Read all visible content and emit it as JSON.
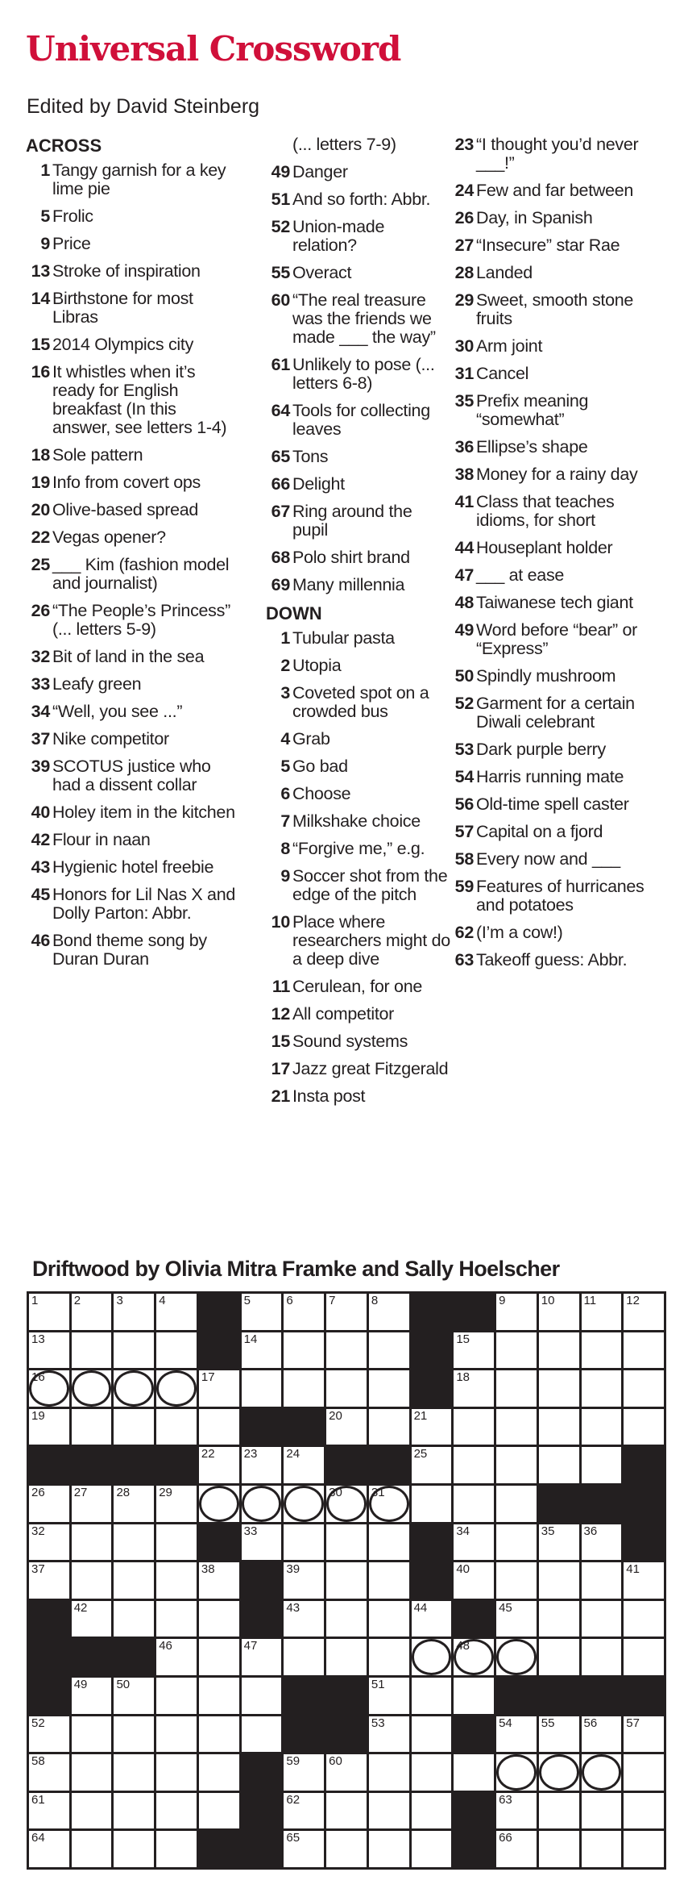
{
  "header": {
    "title": "Universal Crossword",
    "editor": "Edited by David Steinberg"
  },
  "colors": {
    "title": "#d0103a",
    "ink": "#231f20"
  },
  "across_label": "ACROSS",
  "down_label": "DOWN",
  "columns": [
    [
      {
        "type": "hdr",
        "key": "across_label"
      },
      {
        "n": "1",
        "t": "Tangy garnish for a key lime pie"
      },
      {
        "n": "5",
        "t": "Frolic"
      },
      {
        "n": "9",
        "t": "Price"
      },
      {
        "n": "13",
        "t": "Stroke of inspiration"
      },
      {
        "n": "14",
        "t": "Birthstone for most Libras"
      },
      {
        "n": "15",
        "t": "2014 Olympics city"
      },
      {
        "n": "16",
        "t": "It whistles when it’s ready for English breakfast (In this answer, see letters 1-4)"
      },
      {
        "n": "18",
        "t": "Sole pattern"
      },
      {
        "n": "19",
        "t": "Info from covert ops"
      },
      {
        "n": "20",
        "t": "Olive-based spread"
      },
      {
        "n": "22",
        "t": "Vegas opener?"
      },
      {
        "n": "25",
        "t": "___ Kim (fashion model and journalist)"
      },
      {
        "n": "26",
        "t": "“The People’s Princess” (... letters 5-9)"
      },
      {
        "n": "32",
        "t": "Bit of land in the sea"
      },
      {
        "n": "33",
        "t": "Leafy green"
      },
      {
        "n": "34",
        "t": "“Well, you see ...”"
      },
      {
        "n": "37",
        "t": "Nike competitor"
      },
      {
        "n": "39",
        "t": "SCOTUS justice who had a dissent collar"
      },
      {
        "n": "40",
        "t": "Holey item in the kitchen"
      },
      {
        "n": "42",
        "t": "Flour in naan"
      },
      {
        "n": "43",
        "t": "Hygienic hotel freebie"
      },
      {
        "n": "45",
        "t": "Honors for Lil Nas X and Dolly Parton: Abbr."
      },
      {
        "n": "46",
        "t": "Bond theme song by Duran Duran"
      }
    ],
    [
      {
        "type": "cont",
        "t": "(... letters 7-9)"
      },
      {
        "n": "49",
        "t": "Danger"
      },
      {
        "n": "51",
        "t": "And so forth: Abbr."
      },
      {
        "n": "52",
        "t": "Union-made relation?"
      },
      {
        "n": "55",
        "t": "Overact"
      },
      {
        "n": "60",
        "t": "“The real treasure was the friends we made ___ the way”"
      },
      {
        "n": "61",
        "t": "Unlikely to pose (... letters 6-8)"
      },
      {
        "n": "64",
        "t": "Tools for collecting leaves"
      },
      {
        "n": "65",
        "t": "Tons"
      },
      {
        "n": "66",
        "t": "Delight"
      },
      {
        "n": "67",
        "t": "Ring around the pupil"
      },
      {
        "n": "68",
        "t": "Polo shirt brand"
      },
      {
        "n": "69",
        "t": "Many millennia"
      },
      {
        "type": "hdr",
        "key": "down_label"
      },
      {
        "n": "1",
        "t": "Tubular pasta"
      },
      {
        "n": "2",
        "t": "Utopia"
      },
      {
        "n": "3",
        "t": "Coveted spot on a crowded bus"
      },
      {
        "n": "4",
        "t": "Grab"
      },
      {
        "n": "5",
        "t": "Go bad"
      },
      {
        "n": "6",
        "t": "Choose"
      },
      {
        "n": "7",
        "t": "Milkshake choice"
      },
      {
        "n": "8",
        "t": "“Forgive me,” e.g."
      },
      {
        "n": "9",
        "t": "Soccer shot from the edge of the pitch"
      },
      {
        "n": "10",
        "t": "Place where researchers might do a deep dive"
      },
      {
        "n": "11",
        "t": "Cerulean, for one"
      },
      {
        "n": "12",
        "t": "All competitor"
      },
      {
        "n": "15",
        "t": "Sound systems"
      },
      {
        "n": "17",
        "t": "Jazz great Fitzgerald"
      },
      {
        "n": "21",
        "t": "Insta post"
      }
    ],
    [
      {
        "n": "23",
        "t": "“I thought you’d never ___!”"
      },
      {
        "n": "24",
        "t": "Few and far between"
      },
      {
        "n": "26",
        "t": "Day, in Spanish"
      },
      {
        "n": "27",
        "t": "“Insecure” star Rae"
      },
      {
        "n": "28",
        "t": "Landed"
      },
      {
        "n": "29",
        "t": "Sweet, smooth stone fruits"
      },
      {
        "n": "30",
        "t": "Arm joint"
      },
      {
        "n": "31",
        "t": "Cancel"
      },
      {
        "n": "35",
        "t": "Prefix meaning “somewhat”"
      },
      {
        "n": "36",
        "t": "Ellipse’s shape"
      },
      {
        "n": "38",
        "t": "Money for a rainy day"
      },
      {
        "n": "41",
        "t": "Class that teaches idioms, for short"
      },
      {
        "n": "44",
        "t": "Houseplant holder"
      },
      {
        "n": "47",
        "t": "___ at ease"
      },
      {
        "n": "48",
        "t": "Taiwanese tech giant"
      },
      {
        "n": "49",
        "t": "Word before “bear” or “Express”"
      },
      {
        "n": "50",
        "t": "Spindly mushroom"
      },
      {
        "n": "52",
        "t": "Garment for a certain Diwali celebrant"
      },
      {
        "n": "53",
        "t": "Dark purple berry"
      },
      {
        "n": "54",
        "t": "Harris running mate"
      },
      {
        "n": "56",
        "t": "Old-time spell caster"
      },
      {
        "n": "57",
        "t": "Capital on a fjord"
      },
      {
        "n": "58",
        "t": "Every now and ___"
      },
      {
        "n": "59",
        "t": "Features of hurricanes and potatoes"
      },
      {
        "n": "62",
        "t": "(I’m a cow!)"
      },
      {
        "n": "63",
        "t": "Takeoff guess: Abbr."
      }
    ]
  ],
  "puzzle": {
    "byline": "Driftwood by Olivia Mitra Framke and Sally Hoelscher",
    "grid": [
      "....#....##....",
      "....#....#.....",
      "OOOO.....#.....",
      ".....##........",
      "####...##.....#",
      "....OOOOO...###",
      "....#....#....#",
      ".....#...#.....",
      "#....#....#....",
      "###......OOO...",
      "#.....##...####",
      "......##..#....",
      ".....#.....OOO.",
      ".....#....#....",
      "....##....#...."
    ]
  }
}
